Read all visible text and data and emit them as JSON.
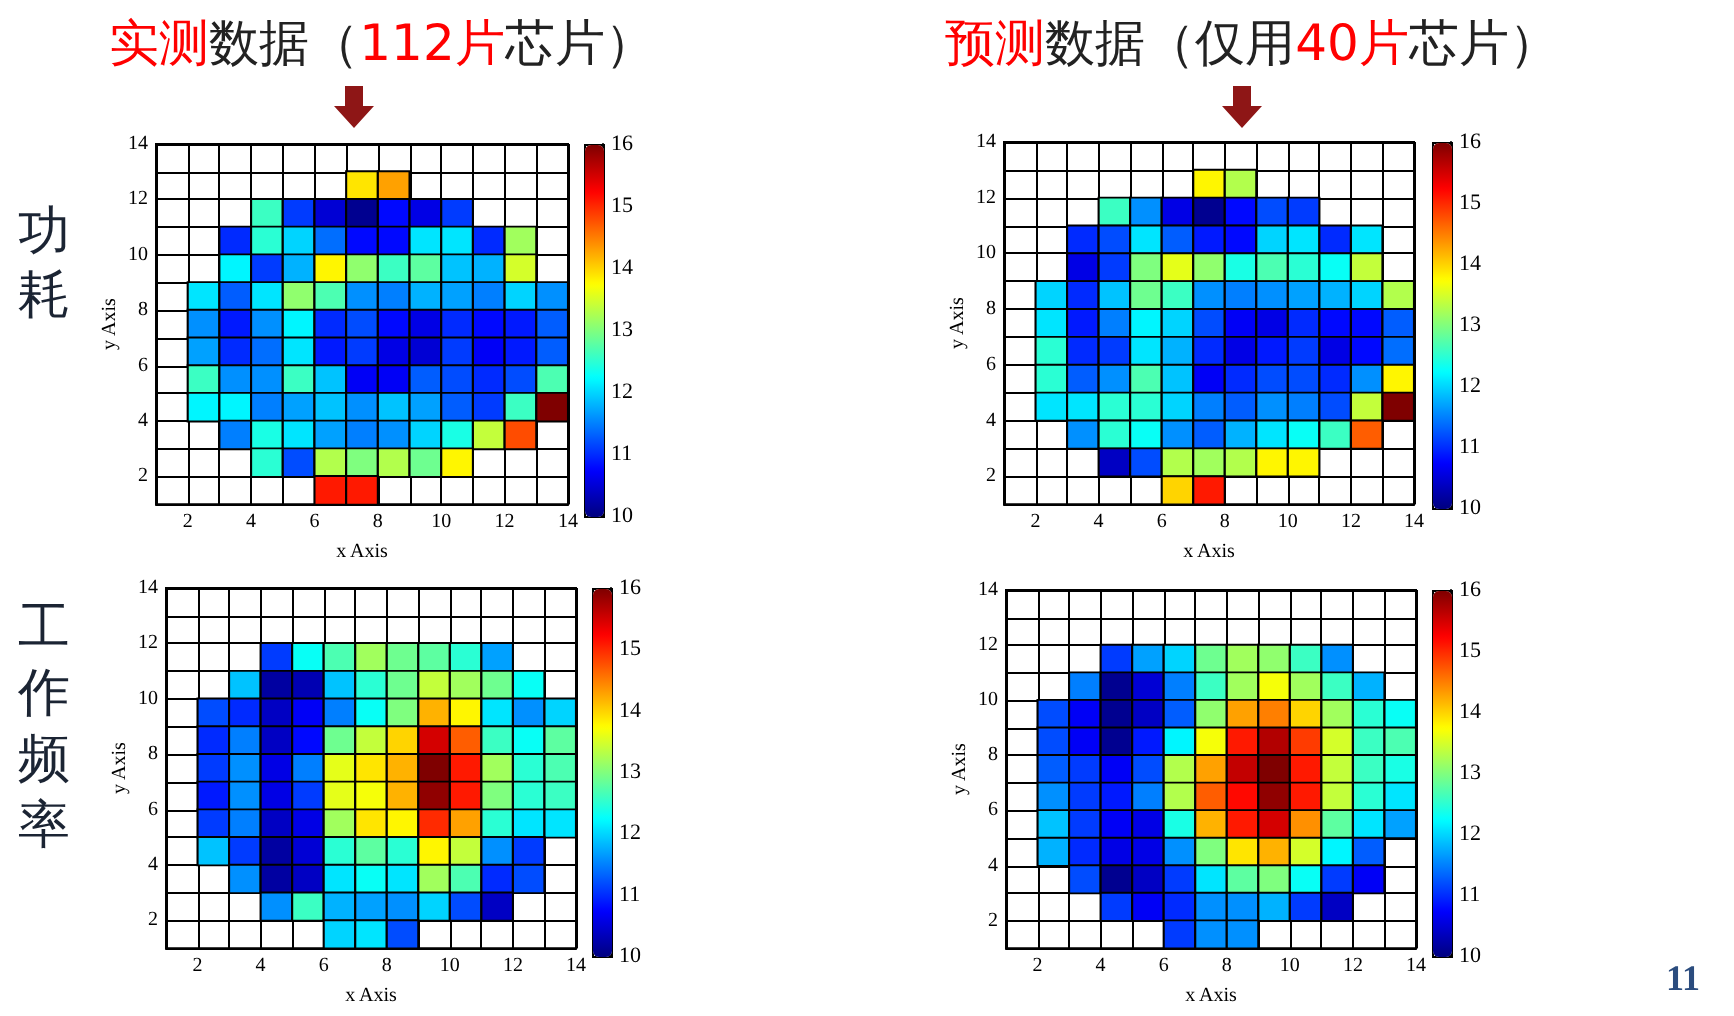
{
  "chart_data": [
    {
      "type": "scatter",
      "marker": "square",
      "title": "实测数据（112片芯片）",
      "xlabel": "x Axis",
      "ylabel": "y Axis",
      "annotations": [
        "功耗"
      ],
      "x": [
        7.5,
        8.5,
        4.5,
        5.5,
        6.5,
        7.5,
        8.5,
        9.5,
        10.5,
        3.5,
        4.5,
        5.5,
        6.5,
        7.5,
        8.5,
        9.5,
        10.5,
        11.5,
        12.5,
        3.5,
        4.5,
        5.5,
        6.5,
        7.5,
        8.5,
        9.5,
        10.5,
        11.5,
        12.5,
        2.5,
        3.5,
        4.5,
        5.5,
        6.5,
        7.5,
        8.5,
        9.5,
        10.5,
        11.5,
        12.5,
        13.5,
        2.5,
        3.5,
        4.5,
        5.5,
        6.5,
        7.5,
        8.5,
        9.5,
        10.5,
        11.5,
        12.5,
        13.5,
        2.5,
        3.5,
        4.5,
        5.5,
        6.5,
        7.5,
        8.5,
        9.5,
        10.5,
        11.5,
        12.5,
        13.5,
        2.5,
        3.5,
        4.5,
        5.5,
        6.5,
        7.5,
        8.5,
        9.5,
        10.5,
        11.5,
        12.5,
        13.5,
        2.5,
        3.5,
        4.5,
        5.5,
        6.5,
        7.5,
        8.5,
        9.5,
        10.5,
        11.5,
        12.5,
        13.5,
        3.5,
        4.5,
        5.5,
        6.5,
        7.5,
        8.5,
        9.5,
        10.5,
        11.5,
        12.5,
        4.5,
        5.5,
        6.5,
        7.5,
        8.5,
        9.5,
        10.5,
        6.5,
        7.5
      ],
      "values": [
        12.5,
        12.5,
        11.5,
        11.5,
        11.5,
        11.5,
        11.5,
        11.5,
        11.5,
        10.5,
        10.5,
        10.5,
        10.5,
        10.5,
        10.5,
        10.5,
        10.5,
        10.5,
        10.5,
        9.5,
        9.5,
        9.5,
        9.5,
        9.5,
        9.5,
        9.5,
        9.5,
        9.5,
        9.5,
        8.5,
        8.5,
        8.5,
        8.5,
        8.5,
        8.5,
        8.5,
        8.5,
        8.5,
        8.5,
        8.5,
        8.5,
        7.5,
        7.5,
        7.5,
        7.5,
        7.5,
        7.5,
        7.5,
        7.5,
        7.5,
        7.5,
        7.5,
        7.5,
        6.5,
        6.5,
        6.5,
        6.5,
        6.5,
        6.5,
        6.5,
        6.5,
        6.5,
        6.5,
        6.5,
        6.5,
        5.5,
        5.5,
        5.5,
        5.5,
        5.5,
        5.5,
        5.5,
        5.5,
        5.5,
        5.5,
        5.5,
        5.5,
        4.5,
        4.5,
        4.5,
        4.5,
        4.5,
        4.5,
        4.5,
        4.5,
        4.5,
        4.5,
        4.5,
        4.5,
        3.5,
        3.5,
        3.5,
        3.5,
        3.5,
        3.5,
        3.5,
        3.5,
        3.5,
        3.5,
        2.5,
        2.5,
        2.5,
        2.5,
        2.5,
        2.5,
        2.5,
        1.5,
        1.5
      ],
      "cvalues": [
        13.9,
        14.3,
        12.6,
        11.1,
        10.5,
        10.1,
        10.8,
        10.6,
        11.1,
        11,
        12.5,
        12,
        11.4,
        10.8,
        10.8,
        12.1,
        12.1,
        11,
        13.2,
        12.2,
        11.1,
        11.8,
        13.8,
        13.1,
        12.6,
        12.8,
        11.9,
        11.8,
        13.5,
        12.1,
        11.3,
        12.1,
        13.1,
        12.7,
        11.6,
        11.5,
        11.8,
        11.7,
        11.5,
        12,
        11.6,
        11.6,
        10.9,
        11.6,
        12.2,
        11,
        11.2,
        10.8,
        10.6,
        11,
        10.8,
        10.9,
        11.3,
        11.7,
        11,
        11.4,
        12.1,
        10.9,
        11.1,
        10.6,
        10.5,
        11.1,
        10.7,
        10.9,
        11.3,
        12.6,
        11.6,
        11.6,
        12.6,
        11.9,
        10.7,
        10.7,
        11.3,
        11.2,
        11,
        11.2,
        12.7,
        12.2,
        12.2,
        11.5,
        11.7,
        11.9,
        11.6,
        11.9,
        11.7,
        11.3,
        11.1,
        12.6,
        16,
        11.5,
        12.4,
        12.1,
        11.7,
        11.5,
        11.6,
        12,
        12.4,
        13.4,
        14.8,
        12.5,
        11.2,
        13.3,
        13,
        13.3,
        12.9,
        13.8,
        15.1,
        15.1
      ],
      "xlim": [
        1,
        14
      ],
      "xticks": [
        {
          "value": 1,
          "label": null
        },
        2,
        {
          "value": 3,
          "label": null
        },
        4,
        {
          "value": 5,
          "label": null
        },
        6,
        {
          "value": 7,
          "label": null
        },
        8,
        {
          "value": 9,
          "label": null
        },
        10,
        {
          "value": 11,
          "label": null
        },
        12,
        {
          "value": 13,
          "label": null
        },
        14
      ],
      "ylim": [
        1,
        14
      ],
      "yticks": [
        {
          "value": 1,
          "label": null
        },
        2,
        {
          "value": 3,
          "label": null
        },
        4,
        {
          "value": 5,
          "label": null
        },
        6,
        {
          "value": 7,
          "label": null
        },
        8,
        {
          "value": 9,
          "label": null
        },
        10,
        {
          "value": 11,
          "label": null
        },
        12,
        {
          "value": 13,
          "label": null
        },
        14
      ],
      "clim": [
        10,
        16
      ],
      "cticks": [
        10,
        11,
        12,
        13,
        14,
        15,
        16
      ],
      "grid": true
    },
    {
      "type": "scatter",
      "marker": "square",
      "title": "预测数据（仅用40片芯片）",
      "xlabel": "x Axis",
      "ylabel": "y Axis",
      "x": [
        7.5,
        8.5,
        4.5,
        5.5,
        6.5,
        7.5,
        8.5,
        9.5,
        10.5,
        3.5,
        4.5,
        5.5,
        6.5,
        7.5,
        8.5,
        9.5,
        10.5,
        11.5,
        12.5,
        3.5,
        4.5,
        5.5,
        6.5,
        7.5,
        8.5,
        9.5,
        10.5,
        11.5,
        12.5,
        2.5,
        3.5,
        4.5,
        5.5,
        6.5,
        7.5,
        8.5,
        9.5,
        10.5,
        11.5,
        12.5,
        13.5,
        2.5,
        3.5,
        4.5,
        5.5,
        6.5,
        7.5,
        8.5,
        9.5,
        10.5,
        11.5,
        12.5,
        13.5,
        2.5,
        3.5,
        4.5,
        5.5,
        6.5,
        7.5,
        8.5,
        9.5,
        10.5,
        11.5,
        12.5,
        13.5,
        2.5,
        3.5,
        4.5,
        5.5,
        6.5,
        7.5,
        8.5,
        9.5,
        10.5,
        11.5,
        12.5,
        13.5,
        2.5,
        3.5,
        4.5,
        5.5,
        6.5,
        7.5,
        8.5,
        9.5,
        10.5,
        11.5,
        12.5,
        13.5,
        3.5,
        4.5,
        5.5,
        6.5,
        7.5,
        8.5,
        9.5,
        10.5,
        11.5,
        12.5,
        4.5,
        5.5,
        6.5,
        7.5,
        8.5,
        9.5,
        10.5,
        6.5,
        7.5
      ],
      "values": [
        12.5,
        12.5,
        11.5,
        11.5,
        11.5,
        11.5,
        11.5,
        11.5,
        11.5,
        10.5,
        10.5,
        10.5,
        10.5,
        10.5,
        10.5,
        10.5,
        10.5,
        10.5,
        10.5,
        9.5,
        9.5,
        9.5,
        9.5,
        9.5,
        9.5,
        9.5,
        9.5,
        9.5,
        9.5,
        8.5,
        8.5,
        8.5,
        8.5,
        8.5,
        8.5,
        8.5,
        8.5,
        8.5,
        8.5,
        8.5,
        8.5,
        7.5,
        7.5,
        7.5,
        7.5,
        7.5,
        7.5,
        7.5,
        7.5,
        7.5,
        7.5,
        7.5,
        7.5,
        6.5,
        6.5,
        6.5,
        6.5,
        6.5,
        6.5,
        6.5,
        6.5,
        6.5,
        6.5,
        6.5,
        6.5,
        5.5,
        5.5,
        5.5,
        5.5,
        5.5,
        5.5,
        5.5,
        5.5,
        5.5,
        5.5,
        5.5,
        5.5,
        4.5,
        4.5,
        4.5,
        4.5,
        4.5,
        4.5,
        4.5,
        4.5,
        4.5,
        4.5,
        4.5,
        4.5,
        3.5,
        3.5,
        3.5,
        3.5,
        3.5,
        3.5,
        3.5,
        3.5,
        3.5,
        3.5,
        2.5,
        2.5,
        2.5,
        2.5,
        2.5,
        2.5,
        2.5,
        1.5,
        1.5
      ],
      "cvalues": [
        13.8,
        13.3,
        12.6,
        11.6,
        10.6,
        10.1,
        10.8,
        11.2,
        11.1,
        11,
        11.2,
        12.1,
        11.3,
        10.9,
        10.8,
        12,
        12.1,
        11,
        12.1,
        10.6,
        11.1,
        13,
        13.6,
        13.1,
        12.4,
        12.7,
        12.5,
        12.3,
        13.4,
        12,
        11,
        11.9,
        12.9,
        12.6,
        11.6,
        11.5,
        11.6,
        11.7,
        11.8,
        12,
        13.3,
        12.1,
        10.9,
        11.5,
        12.2,
        12,
        11.2,
        10.7,
        10.6,
        11,
        10.8,
        10.8,
        11.3,
        12.5,
        11,
        11.1,
        12.1,
        11.8,
        11,
        10.6,
        10.9,
        11.1,
        10.6,
        10.8,
        11.4,
        12.5,
        11.3,
        11.6,
        12.7,
        11.9,
        10.7,
        11,
        11.2,
        11.2,
        11,
        11.6,
        13.8,
        12.1,
        12.1,
        12.5,
        12.5,
        12,
        11.5,
        11.3,
        11.6,
        11.5,
        11.2,
        13.4,
        16,
        11.6,
        12.5,
        12.3,
        11.6,
        11.3,
        11.8,
        12.1,
        12.3,
        12.6,
        14.7,
        10.4,
        11.2,
        13.3,
        13.2,
        13.3,
        13.8,
        13.8,
        14,
        15.1
      ],
      "xlim": [
        1,
        14
      ],
      "xticks": [
        {
          "value": 1,
          "label": null
        },
        2,
        {
          "value": 3,
          "label": null
        },
        4,
        {
          "value": 5,
          "label": null
        },
        6,
        {
          "value": 7,
          "label": null
        },
        8,
        {
          "value": 9,
          "label": null
        },
        10,
        {
          "value": 11,
          "label": null
        },
        12,
        {
          "value": 13,
          "label": null
        },
        14
      ],
      "ylim": [
        1,
        14
      ],
      "yticks": [
        {
          "value": 1,
          "label": null
        },
        2,
        {
          "value": 3,
          "label": null
        },
        4,
        {
          "value": 5,
          "label": null
        },
        6,
        {
          "value": 7,
          "label": null
        },
        8,
        {
          "value": 9,
          "label": null
        },
        10,
        {
          "value": 11,
          "label": null
        },
        12,
        {
          "value": 13,
          "label": null
        },
        14
      ],
      "clim": [
        10,
        16
      ],
      "cticks": [
        10,
        11,
        12,
        13,
        14,
        15,
        16
      ],
      "grid": true
    },
    {
      "type": "scatter",
      "marker": "square",
      "xlabel": "x Axis",
      "ylabel": "y Axis",
      "annotations": [
        "工作频率"
      ],
      "x": [
        4.5,
        5.5,
        6.5,
        7.5,
        8.5,
        9.5,
        10.5,
        11.5,
        3.5,
        4.5,
        5.5,
        6.5,
        7.5,
        8.5,
        9.5,
        10.5,
        11.5,
        12.5,
        2.5,
        3.5,
        4.5,
        5.5,
        6.5,
        7.5,
        8.5,
        9.5,
        10.5,
        11.5,
        12.5,
        13.5,
        2.5,
        3.5,
        4.5,
        5.5,
        6.5,
        7.5,
        8.5,
        9.5,
        10.5,
        11.5,
        12.5,
        13.5,
        2.5,
        3.5,
        4.5,
        5.5,
        6.5,
        7.5,
        8.5,
        9.5,
        10.5,
        11.5,
        12.5,
        13.5,
        2.5,
        3.5,
        4.5,
        5.5,
        6.5,
        7.5,
        8.5,
        9.5,
        10.5,
        11.5,
        12.5,
        13.5,
        2.5,
        3.5,
        4.5,
        5.5,
        6.5,
        7.5,
        8.5,
        9.5,
        10.5,
        11.5,
        12.5,
        13.5,
        2.5,
        3.5,
        4.5,
        5.5,
        6.5,
        7.5,
        8.5,
        9.5,
        10.5,
        11.5,
        12.5,
        3.5,
        4.5,
        5.5,
        6.5,
        7.5,
        8.5,
        9.5,
        10.5,
        11.5,
        12.5,
        4.5,
        5.5,
        6.5,
        7.5,
        8.5,
        9.5,
        10.5,
        11.5,
        6.5,
        7.5,
        8.5
      ],
      "values": [
        11.5,
        11.5,
        11.5,
        11.5,
        11.5,
        11.5,
        11.5,
        11.5,
        10.5,
        10.5,
        10.5,
        10.5,
        10.5,
        10.5,
        10.5,
        10.5,
        10.5,
        10.5,
        9.5,
        9.5,
        9.5,
        9.5,
        9.5,
        9.5,
        9.5,
        9.5,
        9.5,
        9.5,
        9.5,
        9.5,
        8.5,
        8.5,
        8.5,
        8.5,
        8.5,
        8.5,
        8.5,
        8.5,
        8.5,
        8.5,
        8.5,
        8.5,
        7.5,
        7.5,
        7.5,
        7.5,
        7.5,
        7.5,
        7.5,
        7.5,
        7.5,
        7.5,
        7.5,
        7.5,
        6.5,
        6.5,
        6.5,
        6.5,
        6.5,
        6.5,
        6.5,
        6.5,
        6.5,
        6.5,
        6.5,
        6.5,
        5.5,
        5.5,
        5.5,
        5.5,
        5.5,
        5.5,
        5.5,
        5.5,
        5.5,
        5.5,
        5.5,
        5.5,
        4.5,
        4.5,
        4.5,
        4.5,
        4.5,
        4.5,
        4.5,
        4.5,
        4.5,
        4.5,
        4.5,
        3.5,
        3.5,
        3.5,
        3.5,
        3.5,
        3.5,
        3.5,
        3.5,
        3.5,
        3.5,
        2.5,
        2.5,
        2.5,
        2.5,
        2.5,
        2.5,
        2.5,
        2.5,
        1.5,
        1.5,
        1.5
      ],
      "cvalues": [
        11.1,
        12.3,
        12.7,
        13.2,
        12.9,
        12.8,
        12.5,
        11.7,
        11.9,
        10.2,
        10.3,
        11.9,
        12.5,
        12.9,
        13.4,
        13.2,
        12.9,
        12.3,
        11.2,
        11,
        10.4,
        10.7,
        11.5,
        12.3,
        13,
        14.2,
        13.8,
        12.1,
        11.6,
        12,
        11,
        11.5,
        10.4,
        10.8,
        12.9,
        13.4,
        14,
        15.5,
        14.7,
        12.6,
        12.3,
        12.8,
        11.1,
        11.6,
        10.6,
        11.5,
        13.6,
        13.9,
        14.2,
        16,
        15.1,
        13.2,
        12.5,
        12.7,
        10.9,
        11.6,
        10.6,
        11.1,
        13.6,
        13.7,
        14.2,
        15.9,
        15.1,
        13,
        12.5,
        12.6,
        11.1,
        11.5,
        10.4,
        10.6,
        13.2,
        13.9,
        13.8,
        15,
        14.3,
        12.5,
        12.1,
        12.1,
        11.9,
        11.1,
        10.2,
        10.5,
        12.5,
        12.8,
        12.5,
        13.8,
        13.4,
        11.6,
        11.1,
        11.6,
        10.2,
        10.4,
        12.1,
        12.3,
        12.1,
        13.2,
        12.7,
        11,
        11.2,
        11.6,
        12.6,
        11.8,
        11.7,
        11.6,
        12,
        11.2,
        10.4,
        12,
        12.1,
        11.2
      ],
      "xlim": [
        1,
        14
      ],
      "xticks": [
        {
          "value": 1,
          "label": null
        },
        2,
        {
          "value": 3,
          "label": null
        },
        4,
        {
          "value": 5,
          "label": null
        },
        6,
        {
          "value": 7,
          "label": null
        },
        8,
        {
          "value": 9,
          "label": null
        },
        10,
        {
          "value": 11,
          "label": null
        },
        12,
        {
          "value": 13,
          "label": null
        },
        14
      ],
      "ylim": [
        1,
        14
      ],
      "yticks": [
        {
          "value": 1,
          "label": null
        },
        2,
        {
          "value": 3,
          "label": null
        },
        4,
        {
          "value": 5,
          "label": null
        },
        6,
        {
          "value": 7,
          "label": null
        },
        8,
        {
          "value": 9,
          "label": null
        },
        10,
        {
          "value": 11,
          "label": null
        },
        12,
        {
          "value": 13,
          "label": null
        },
        14
      ],
      "clim": [
        10,
        16
      ],
      "cticks": [
        10,
        11,
        12,
        13,
        14,
        15,
        16
      ],
      "grid": true
    },
    {
      "type": "scatter",
      "marker": "square",
      "xlabel": "x Axis",
      "ylabel": "y Axis",
      "annotations": [
        "11"
      ],
      "x": [
        4.5,
        5.5,
        6.5,
        7.5,
        8.5,
        9.5,
        10.5,
        11.5,
        3.5,
        4.5,
        5.5,
        6.5,
        7.5,
        8.5,
        9.5,
        10.5,
        11.5,
        12.5,
        2.5,
        3.5,
        4.5,
        5.5,
        6.5,
        7.5,
        8.5,
        9.5,
        10.5,
        11.5,
        12.5,
        13.5,
        2.5,
        3.5,
        4.5,
        5.5,
        6.5,
        7.5,
        8.5,
        9.5,
        10.5,
        11.5,
        12.5,
        13.5,
        2.5,
        3.5,
        4.5,
        5.5,
        6.5,
        7.5,
        8.5,
        9.5,
        10.5,
        11.5,
        12.5,
        13.5,
        2.5,
        3.5,
        4.5,
        5.5,
        6.5,
        7.5,
        8.5,
        9.5,
        10.5,
        11.5,
        12.5,
        13.5,
        2.5,
        3.5,
        4.5,
        5.5,
        6.5,
        7.5,
        8.5,
        9.5,
        10.5,
        11.5,
        12.5,
        13.5,
        2.5,
        3.5,
        4.5,
        5.5,
        6.5,
        7.5,
        8.5,
        9.5,
        10.5,
        11.5,
        12.5,
        3.5,
        4.5,
        5.5,
        6.5,
        7.5,
        8.5,
        9.5,
        10.5,
        11.5,
        12.5,
        4.5,
        5.5,
        6.5,
        7.5,
        8.5,
        9.5,
        10.5,
        11.5,
        6.5,
        7.5,
        8.5
      ],
      "values": [
        11.5,
        11.5,
        11.5,
        11.5,
        11.5,
        11.5,
        11.5,
        11.5,
        10.5,
        10.5,
        10.5,
        10.5,
        10.5,
        10.5,
        10.5,
        10.5,
        10.5,
        10.5,
        9.5,
        9.5,
        9.5,
        9.5,
        9.5,
        9.5,
        9.5,
        9.5,
        9.5,
        9.5,
        9.5,
        9.5,
        8.5,
        8.5,
        8.5,
        8.5,
        8.5,
        8.5,
        8.5,
        8.5,
        8.5,
        8.5,
        8.5,
        8.5,
        7.5,
        7.5,
        7.5,
        7.5,
        7.5,
        7.5,
        7.5,
        7.5,
        7.5,
        7.5,
        7.5,
        7.5,
        6.5,
        6.5,
        6.5,
        6.5,
        6.5,
        6.5,
        6.5,
        6.5,
        6.5,
        6.5,
        6.5,
        6.5,
        5.5,
        5.5,
        5.5,
        5.5,
        5.5,
        5.5,
        5.5,
        5.5,
        5.5,
        5.5,
        5.5,
        5.5,
        4.5,
        4.5,
        4.5,
        4.5,
        4.5,
        4.5,
        4.5,
        4.5,
        4.5,
        4.5,
        4.5,
        3.5,
        3.5,
        3.5,
        3.5,
        3.5,
        3.5,
        3.5,
        3.5,
        3.5,
        3.5,
        2.5,
        2.5,
        2.5,
        2.5,
        2.5,
        2.5,
        2.5,
        2.5,
        1.5,
        1.5,
        1.5
      ],
      "cvalues": [
        11.1,
        11.7,
        12,
        12.9,
        13.2,
        13.1,
        12.6,
        11.6,
        11.5,
        10.1,
        10.5,
        11.5,
        12.6,
        13.2,
        13.7,
        13.2,
        12.6,
        11.8,
        11.2,
        10.7,
        10.1,
        10.4,
        11.3,
        13.1,
        14.3,
        14.5,
        14,
        13.2,
        12.5,
        12.3,
        11.2,
        10.7,
        10.1,
        10.9,
        12.2,
        13.7,
        15.1,
        15.7,
        14.9,
        13.5,
        12.6,
        12.7,
        11.3,
        11.1,
        10.7,
        11.2,
        13.3,
        14.3,
        15.6,
        16,
        15.1,
        13.4,
        12.6,
        12.4,
        11.6,
        11.1,
        10.9,
        11.5,
        13.3,
        14.7,
        15.2,
        15.9,
        15.1,
        13.4,
        12.5,
        12.1,
        11.9,
        11.1,
        10.7,
        10.6,
        12.4,
        14.2,
        15.1,
        15.5,
        14.4,
        12.8,
        12.1,
        11.7,
        11.8,
        11,
        10.6,
        10.6,
        11.6,
        13,
        13.9,
        14.2,
        13.5,
        12.2,
        11.3,
        11.2,
        10.1,
        10.4,
        11.1,
        12.1,
        12.8,
        13,
        12.3,
        11.1,
        10.7,
        11.1,
        10.7,
        11,
        11.6,
        11.6,
        11.8,
        11.1,
        10.4,
        11.1,
        11.6,
        11.6
      ],
      "xlim": [
        1,
        14
      ],
      "xticks": [
        {
          "value": 1,
          "label": null
        },
        2,
        {
          "value": 3,
          "label": null
        },
        4,
        {
          "value": 5,
          "label": null
        },
        6,
        {
          "value": 7,
          "label": null
        },
        8,
        {
          "value": 9,
          "label": null
        },
        10,
        {
          "value": 11,
          "label": null
        },
        12,
        {
          "value": 13,
          "label": null
        },
        14
      ],
      "ylim": [
        1,
        14
      ],
      "yticks": [
        {
          "value": 1,
          "label": null
        },
        2,
        {
          "value": 3,
          "label": null
        },
        4,
        {
          "value": 5,
          "label": null
        },
        6,
        {
          "value": 7,
          "label": null
        },
        8,
        {
          "value": 9,
          "label": null
        },
        10,
        {
          "value": 11,
          "label": null
        },
        12,
        {
          "value": 13,
          "label": null
        },
        14
      ],
      "clim": [
        10,
        16
      ],
      "cticks": [
        10,
        11,
        12,
        13,
        14,
        15,
        16
      ],
      "grid": true
    }
  ]
}
